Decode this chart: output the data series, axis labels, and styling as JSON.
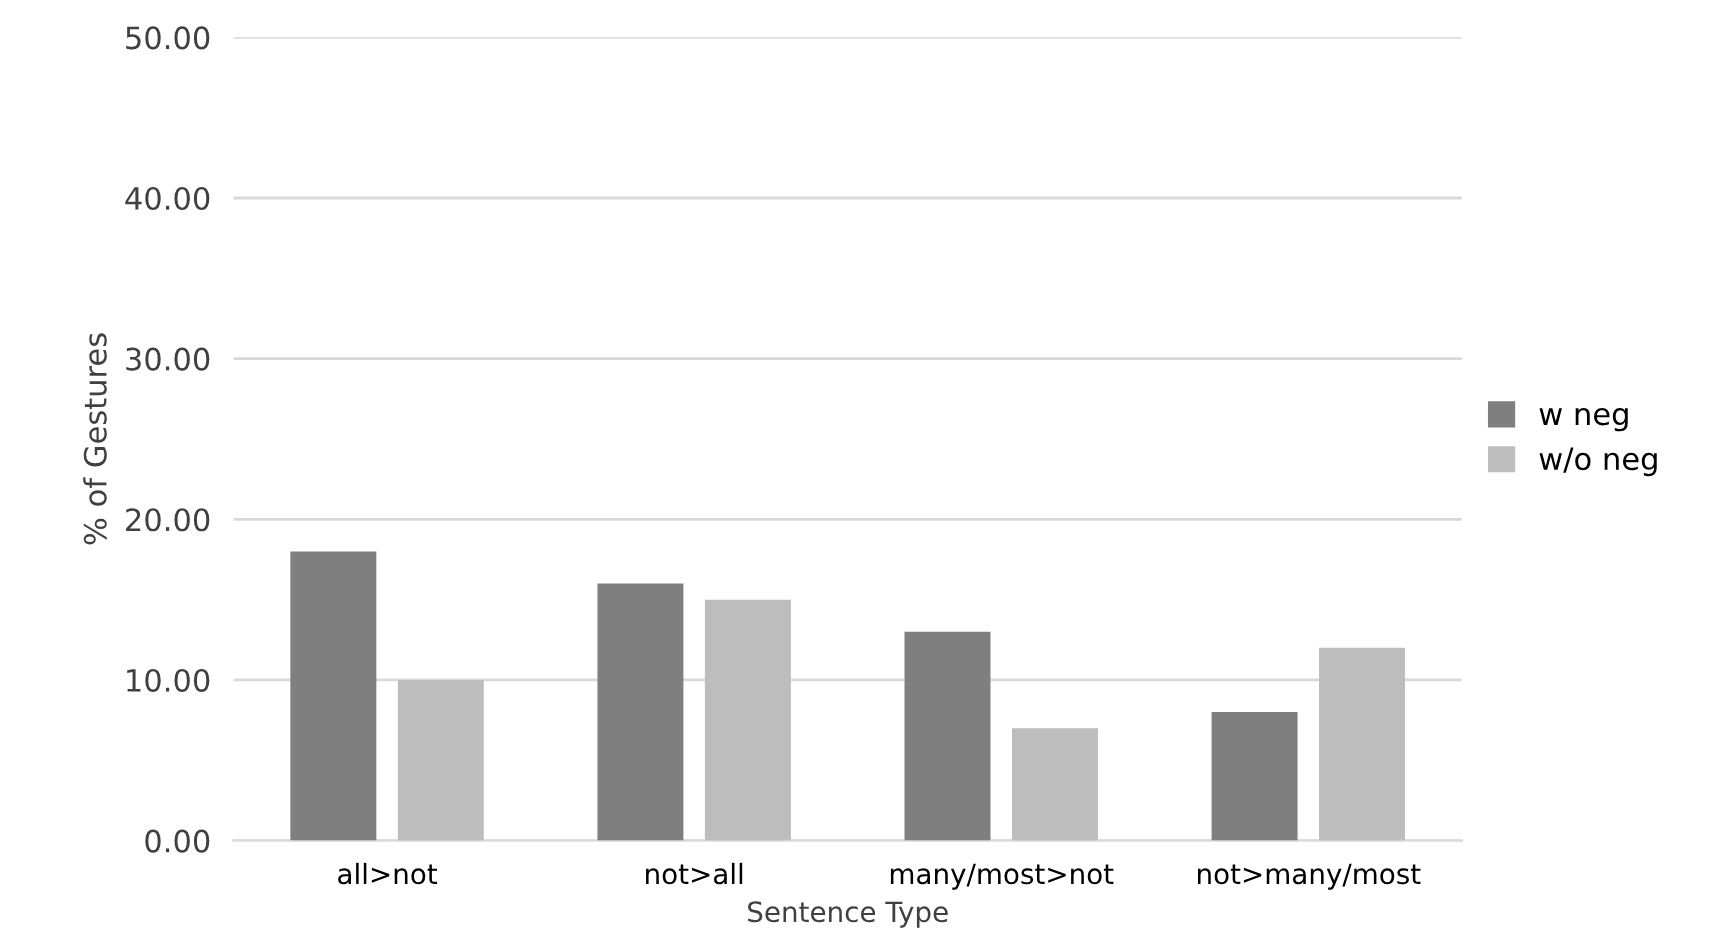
{
  "chart_data": {
    "type": "bar",
    "xlabel": "Sentence Type",
    "ylabel": "% of Gestures",
    "categories": [
      "all>not",
      "not>all",
      "many/most>not",
      "not>many/most"
    ],
    "series": [
      {
        "name": "w neg",
        "color": "#7f7f7f",
        "values": [
          18,
          16,
          13,
          8
        ]
      },
      {
        "name": "w/o neg",
        "color": "#bdbdbd",
        "values": [
          10,
          15,
          7,
          12
        ]
      }
    ],
    "ylim": [
      0,
      50
    ],
    "yticks": [
      {
        "value": 0,
        "label": "0.00"
      },
      {
        "value": 10,
        "label": "10.00"
      },
      {
        "value": 20,
        "label": "20.00"
      },
      {
        "value": 30,
        "label": "30.00"
      },
      {
        "value": 40,
        "label": "40.00"
      },
      {
        "value": 50,
        "label": "50.00"
      }
    ],
    "grid": "y",
    "legend": "right"
  }
}
